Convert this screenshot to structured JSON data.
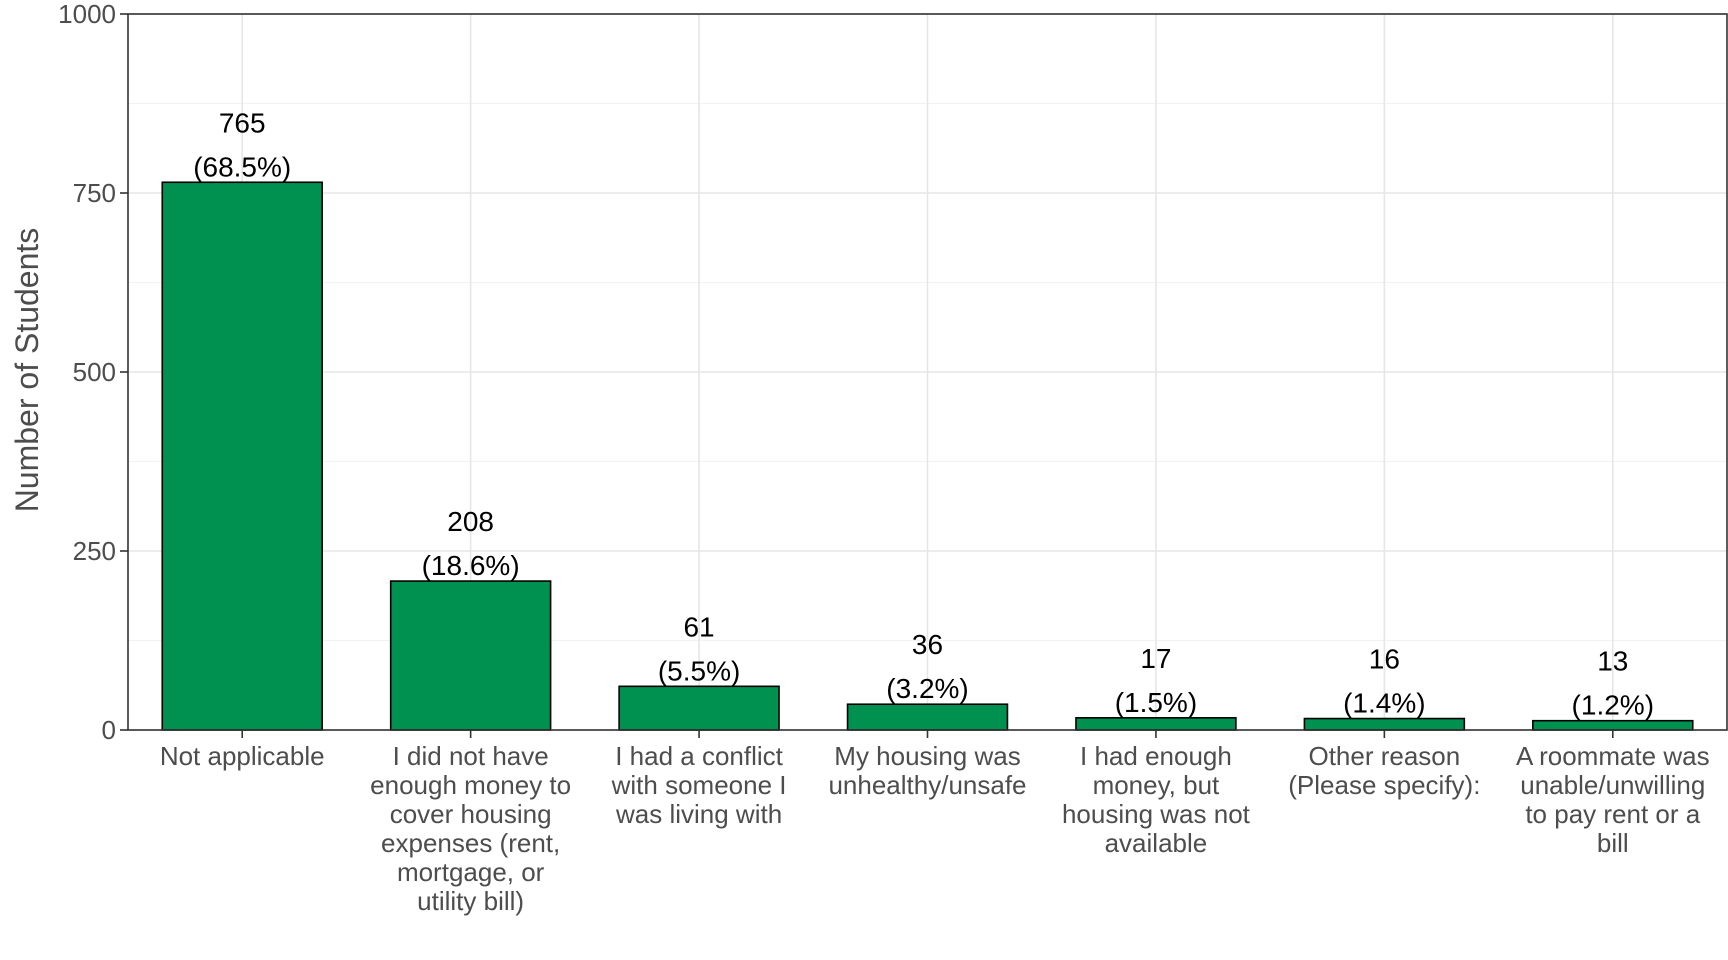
{
  "chart_data": {
    "type": "bar",
    "title": "",
    "xlabel": "",
    "ylabel": "Number of Students",
    "ylim": [
      0,
      1000
    ],
    "yticks": [
      0,
      250,
      500,
      750,
      1000
    ],
    "grid": true,
    "bar_color": "#009150",
    "bar_outline": "#000000",
    "categories": [
      [
        "Not applicable"
      ],
      [
        "I did not have",
        "enough money to",
        "cover housing",
        "expenses (rent,",
        "mortgage, or",
        "utility bill)"
      ],
      [
        "I had a conflict",
        "with someone I",
        "was living with"
      ],
      [
        "My housing was",
        "unhealthy/unsafe"
      ],
      [
        "I had enough",
        "money, but",
        "housing was not",
        "available"
      ],
      [
        "Other reason",
        "(Please specify):"
      ],
      [
        "A roommate was",
        "unable/unwilling",
        "to pay rent or a",
        "bill"
      ]
    ],
    "values": [
      765,
      208,
      61,
      36,
      17,
      16,
      13
    ],
    "percent_labels": [
      "(68.5%)",
      "(18.6%)",
      "(5.5%)",
      "(3.2%)",
      "(1.5%)",
      "(1.4%)",
      "(1.2%)"
    ]
  }
}
